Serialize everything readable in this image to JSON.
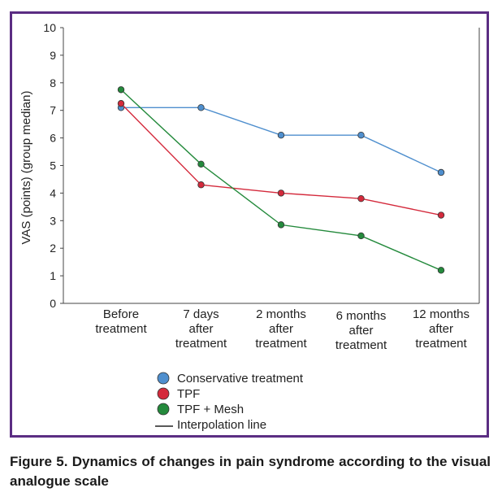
{
  "chart_data": {
    "type": "line",
    "title": "",
    "ylabel": "VAS (points) (group median)",
    "xlabel": "",
    "ylim": [
      0,
      10
    ],
    "yticks": [
      0,
      1,
      2,
      3,
      4,
      5,
      6,
      7,
      8,
      9,
      10
    ],
    "grid": false,
    "categories": [
      [
        "Before",
        "treatment"
      ],
      [
        "7 days",
        "after",
        "treatment"
      ],
      [
        "2 months",
        "after",
        "treatment"
      ],
      [
        "6 months",
        "after",
        "treatment"
      ],
      [
        "12 months",
        "after",
        "treatment"
      ]
    ],
    "series": [
      {
        "name": "Conservative treatment",
        "color": "#4f8fce",
        "values": [
          7.1,
          7.1,
          6.1,
          6.1,
          4.75
        ]
      },
      {
        "name": "TPF",
        "color": "#d42a3c",
        "values": [
          7.25,
          4.3,
          4.0,
          3.8,
          3.2
        ]
      },
      {
        "name": "TPF + Mesh",
        "color": "#248a3c",
        "values": [
          7.75,
          5.05,
          2.85,
          2.45,
          1.2
        ]
      }
    ],
    "legend": {
      "placement": "bottom-left",
      "line_entry": "Interpolation line"
    }
  },
  "caption": "Figure 5. Dynamics of changes in pain syndrome according to the visual analogue scale"
}
